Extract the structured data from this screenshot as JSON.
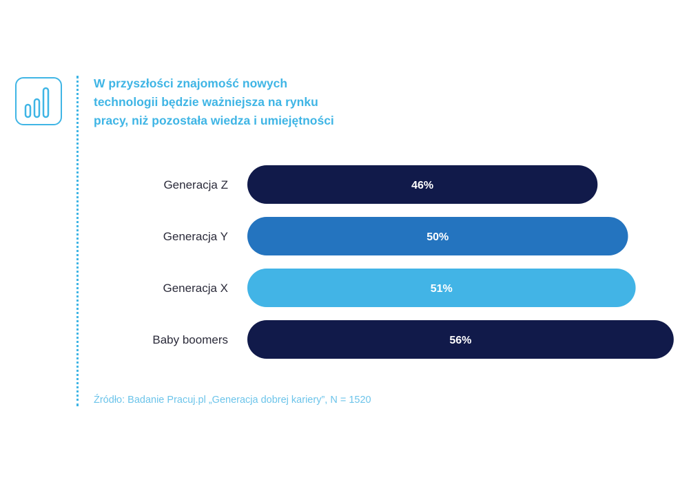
{
  "header": {
    "title_lines": [
      "W przyszłości znajomość nowych",
      "technologii będzie ważniejsza na rynku",
      "pracy, niż pozostała wiedza i umiejętności"
    ],
    "icon": "bar-chart-icon"
  },
  "chart_data": {
    "type": "bar",
    "orientation": "horizontal",
    "categories": [
      "Generacja Z",
      "Generacja Y",
      "Generacja X",
      "Baby boomers"
    ],
    "values": [
      46,
      50,
      51,
      56
    ],
    "value_labels": [
      "46%",
      "50%",
      "51%",
      "56%"
    ],
    "unit": "%",
    "colors": [
      "#111a4a",
      "#2474bf",
      "#42b4e6",
      "#111a4a"
    ],
    "title": "W przyszłości znajomość nowych technologii będzie ważniejsza na rynku pracy, niż pozostała wiedza i umiejętności",
    "xlabel": "",
    "ylabel": "",
    "grid": false,
    "legend": false
  },
  "footer": {
    "source": "Źródło: Badanie Pracuj.pl „Generacja dobrej kariery”, N = 1520"
  },
  "colors": {
    "accent": "#3fb5e5",
    "dark_navy": "#111a4a",
    "mid_blue": "#2474bf",
    "light_blue": "#42b4e6"
  }
}
